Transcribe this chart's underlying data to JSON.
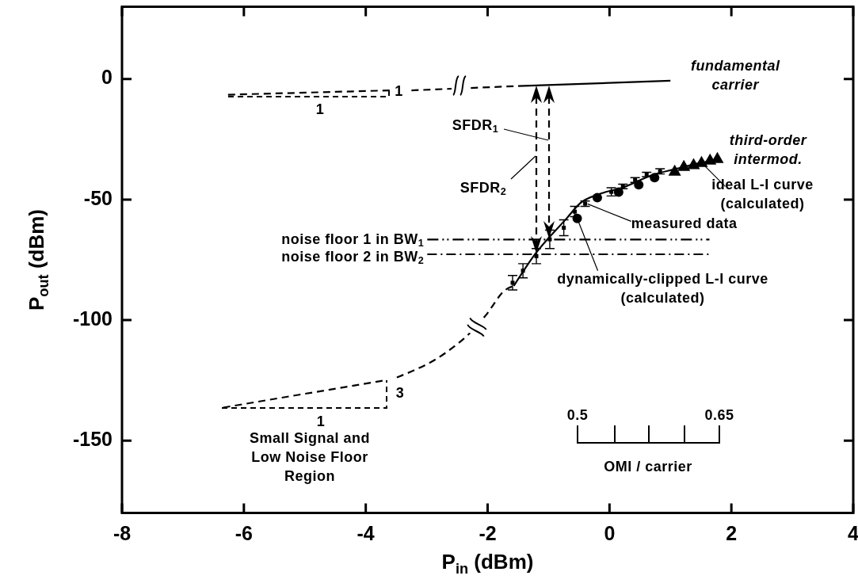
{
  "chart_data": {
    "type": "line",
    "xlabel": "P$_{in}$ (dBm)",
    "ylabel": "P$_{out}$ (dBm)",
    "xlim": [
      -8,
      4
    ],
    "xticks": [
      -8,
      -6,
      -4,
      -2,
      0,
      2,
      4
    ],
    "ylim": [
      -180,
      30
    ],
    "yticks": [
      -150,
      -100,
      -50,
      0
    ],
    "grid": false,
    "series": [
      {
        "color": "#000000",
        "line_style": "dashed",
        "x": [
          -6.26,
          -3.6
        ],
        "values": [
          -6.5,
          -4.7
        ]
      },
      {
        "color": "#000000",
        "line_style": "dashed",
        "x": [
          -3.25,
          -1.5
        ],
        "values": [
          -4.7,
          -2.9
        ]
      },
      {
        "color": "#000000",
        "line_style": "solid",
        "x": [
          -1.5,
          1.0
        ],
        "values": [
          -2.9,
          -0.7
        ]
      },
      {
        "color": "#000000",
        "line_style": "dashed",
        "x": [
          -6.34,
          -3.67
        ],
        "values": [
          -136.3,
          -124.9
        ]
      },
      {
        "color": "#000000",
        "line_style": "dashed",
        "x": [
          -3.49,
          -2.68,
          -2.21,
          -2.03,
          -1.71,
          -1.57
        ],
        "values": [
          -123.8,
          -113.4,
          -103.3,
          -98,
          -87.5,
          -85.8
        ]
      },
      {
        "color": "#000000",
        "line_style": "solid",
        "x": [
          -1.57,
          -1.22,
          -0.7,
          -0.49,
          -0.18,
          0.21,
          0.73,
          1.07,
          1.51,
          1.75
        ],
        "values": [
          -85.8,
          -72.6,
          -57.7,
          -51.7,
          -47.8,
          -45.1,
          -39.6,
          -37.4,
          -34.7,
          -33.5
        ]
      },
      {
        "color": "#000000",
        "line_style": "dashdotdot",
        "x": [
          -2.99,
          1.64
        ],
        "values": [
          -66.6,
          -66.6
        ]
      },
      {
        "color": "#000000",
        "line_style": "dashdot",
        "x": [
          -2.99,
          1.64
        ],
        "values": [
          -72.7,
          -72.7
        ]
      },
      {
        "type": "scatter",
        "color": "#000000",
        "marker": "square",
        "x": [
          -1.59,
          -1.42,
          -1.2,
          -0.98,
          -0.75,
          -0.57,
          -0.4,
          0.03,
          0.22,
          0.42,
          0.61,
          0.83
        ],
        "values": [
          -84.5,
          -79.5,
          -73.5,
          -66.5,
          -61.7,
          -55,
          -51.7,
          -46.8,
          -44.5,
          -41.9,
          -39.6,
          -38.3
        ],
        "errors": [
          [
            -87.5,
            -81.5
          ],
          [
            -82.5,
            -76.6
          ],
          [
            -76.6,
            -70.3
          ],
          [
            -70.3,
            -62.7
          ],
          [
            -65,
            -58.4
          ],
          [
            -57.1,
            -52.8
          ],
          [
            -52.8,
            -50.6
          ],
          [
            -48.5,
            -45.1
          ],
          [
            -45.5,
            -43.6
          ],
          [
            -42.9,
            -40.9
          ],
          [
            -40.5,
            -38.7
          ],
          [
            -39.4,
            -37.2
          ]
        ]
      },
      {
        "type": "scatter",
        "color": "#000000",
        "marker": "circle",
        "x": [
          -0.53,
          -0.2,
          0.15,
          0.48,
          0.74
        ],
        "values": [
          -57.8,
          -49.2,
          -46.9,
          -43.9,
          -40.9
        ]
      },
      {
        "type": "scatter",
        "color": "#000000",
        "marker": "triangle",
        "x": [
          1.07,
          1.22,
          1.38,
          1.51,
          1.65,
          1.77
        ],
        "values": [
          -38.3,
          -36.3,
          -35.6,
          -34.7,
          -33.7,
          -33
        ]
      }
    ],
    "annotations": [
      {
        "text": "fundamental\ncarrier",
        "x": 1.0,
        "y": -0.7
      },
      {
        "text": "third-order\nintermod.",
        "x": 1.77,
        "y": -33
      },
      {
        "text": "ideal L-I curve\n(calculated)",
        "x": 1.51,
        "y": -34.7
      },
      {
        "text": "measured data",
        "x": -0.36,
        "y": -51.8
      },
      {
        "text": "dynamically-clipped L-I curve\n(calculated)",
        "x": -0.53,
        "y": -57.8
      },
      "SFDR$_{1}$",
      "SFDR$_{2}$",
      {
        "text": "noise floor 1 in BW$_{1}$",
        "x": -2.99,
        "y": -66.6
      },
      {
        "text": "noise floor 2 in BW$_{2}$",
        "x": -2.99,
        "y": -72.7
      },
      "1",
      {
        "text": "1",
        "x": -3.6,
        "y": -4.7
      },
      {
        "text": "3",
        "x": -3.67,
        "y": -124.9
      },
      "1",
      "Small Signal and\nLow Noise Floor\nRegion",
      "0.5",
      "0.65",
      "OMI / carrier"
    ]
  }
}
